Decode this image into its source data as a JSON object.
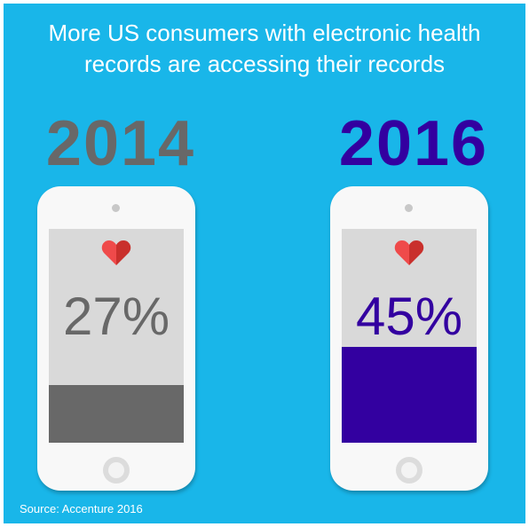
{
  "title": {
    "line1": "More US consumers with electronic health",
    "line2": "records are accessing their records"
  },
  "source": "Source: Accenture 2016",
  "colors": {
    "background": "#19b6e9",
    "year_2014": "#686868",
    "year_2016": "#3300a0",
    "heart": "#e63946",
    "screen": "#d9d9d9"
  },
  "chart_data": {
    "type": "bar",
    "categories": [
      "2014",
      "2016"
    ],
    "values": [
      27,
      45
    ],
    "value_labels": [
      "27%",
      "45%"
    ],
    "ylim": [
      0,
      100
    ],
    "unit": "%",
    "title": "More US consumers with electronic health records are accessing their records"
  },
  "icons": [
    "heart-icon",
    "phone-speaker-icon",
    "home-button-icon"
  ]
}
